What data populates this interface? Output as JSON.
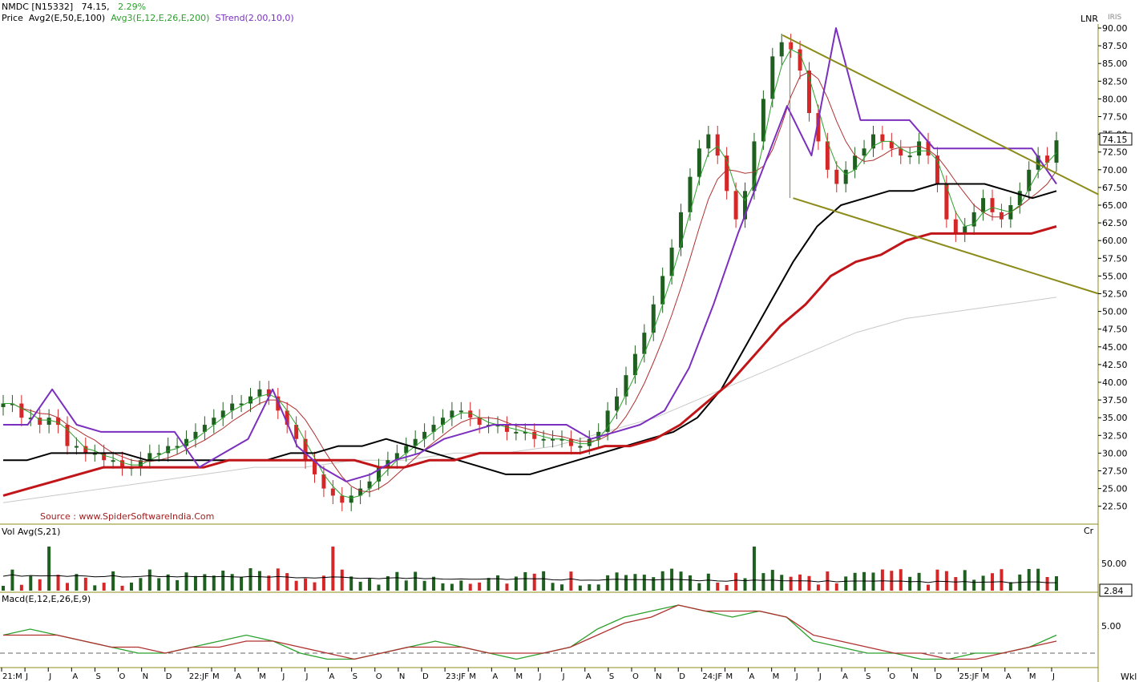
{
  "header": {
    "symbol": "NMDC [N15332]",
    "last": "74.15,",
    "change": "2.29%",
    "price_label": "Price",
    "avg2": "Avg2(E,50,E,100)",
    "avg3": "Avg3(E,12,E,26,E,200)",
    "strend": "STrend(2.00,10,0)",
    "scale_mode": "LNR",
    "scale_tag": "IRIS"
  },
  "source": "Source : www.SpiderSoftwareIndia.Com",
  "volume_panel": {
    "label": "Vol Avg(S,21)",
    "unit": "Cr",
    "tick": "50.00",
    "badge": "2.84"
  },
  "macd_panel": {
    "label": "Macd(E,12,E,26,E,9)",
    "tick": "5.00"
  },
  "price_badge": "74.15",
  "timeframe": "Wkl",
  "colors": {
    "up": "#1f5f1f",
    "down": "#d62728",
    "strend": "#7b2fbf",
    "ema50": "#000000",
    "ema100": "#c0161a",
    "channel": "#8b8b1a",
    "fast": "#2ca02c",
    "slow": "#b03030"
  },
  "chart_data": [
    {
      "type": "candlestick",
      "title": "NMDC [N15332]",
      "ylim": [
        20,
        90
      ],
      "y_ticks": [
        "22.50",
        "25.00",
        "27.50",
        "30.00",
        "32.50",
        "35.00",
        "37.50",
        "40.00",
        "42.50",
        "45.00",
        "47.50",
        "50.00",
        "52.50",
        "55.00",
        "57.50",
        "60.00",
        "62.50",
        "65.00",
        "67.50",
        "70.00",
        "72.50",
        "75.00",
        "77.50",
        "80.00",
        "82.50",
        "85.00",
        "87.50",
        "90.00"
      ],
      "x_ticks": [
        "21:M",
        "J",
        "J",
        "A",
        "S",
        "O",
        "N",
        "D",
        "22:JF",
        "M",
        "A",
        "M",
        "J",
        "J",
        "A",
        "S",
        "O",
        "N",
        "D",
        "23:JF",
        "M",
        "A",
        "M",
        "J",
        "J",
        "A",
        "S",
        "O",
        "N",
        "D",
        "24:JF",
        "M",
        "A",
        "M",
        "J",
        "J",
        "A",
        "S",
        "O",
        "N",
        "D",
        "25:JF",
        "M",
        "A",
        "M",
        "J"
      ],
      "close_series": [
        37,
        37,
        35,
        35,
        34,
        35,
        34,
        31,
        31,
        30,
        30,
        29,
        29,
        28,
        28,
        29,
        30,
        30,
        31,
        31,
        32,
        33,
        34,
        35,
        36,
        37,
        37,
        38,
        39,
        38,
        36,
        34,
        32,
        29,
        27,
        25,
        24,
        23,
        24,
        25,
        26,
        28,
        29,
        30,
        31,
        32,
        33,
        34,
        35,
        36,
        36,
        35,
        34,
        34,
        34,
        33,
        33,
        33,
        32,
        32,
        32,
        32,
        31,
        31,
        32,
        33,
        36,
        38,
        41,
        44,
        47,
        51,
        55,
        59,
        64,
        69,
        73,
        75,
        72,
        67,
        63,
        67,
        74,
        80,
        86,
        88,
        87,
        84,
        78,
        74,
        70,
        68,
        70,
        72,
        73,
        75,
        74,
        73,
        72,
        72,
        74,
        72,
        68,
        63,
        61,
        62,
        64,
        66,
        64,
        63,
        65,
        67,
        70,
        72,
        71,
        74.15
      ],
      "series": [
        {
          "name": "Avg2 E50",
          "values": [
            29,
            29,
            30,
            30,
            30,
            30,
            29,
            29,
            29,
            29,
            29,
            29,
            30,
            30,
            31,
            31,
            32,
            31,
            30,
            29,
            28,
            27,
            27,
            28,
            29,
            30,
            31,
            32,
            33,
            35,
            39,
            45,
            51,
            57,
            62,
            65,
            66,
            67,
            67,
            68,
            68,
            68,
            67,
            66,
            67
          ]
        },
        {
          "name": "Avg2 E100",
          "values": [
            24,
            25,
            26,
            27,
            28,
            28,
            28,
            28,
            28,
            29,
            29,
            29,
            29,
            29,
            29,
            28,
            28,
            29,
            29,
            30,
            30,
            30,
            30,
            30,
            31,
            31,
            32,
            34,
            37,
            40,
            44,
            48,
            51,
            55,
            57,
            58,
            60,
            61,
            61,
            61,
            61,
            61,
            62
          ]
        },
        {
          "name": "STrend",
          "values": [
            34,
            34,
            39,
            34,
            33,
            33,
            33,
            33,
            28,
            30,
            32,
            39,
            31,
            28,
            26,
            27,
            29,
            30,
            32,
            33,
            34,
            34,
            34,
            34,
            32,
            33,
            34,
            36,
            42,
            51,
            61,
            70,
            79,
            72,
            90,
            77,
            77,
            77,
            73,
            73,
            73,
            73,
            73,
            68
          ]
        }
      ]
    },
    {
      "type": "bar",
      "title": "Vol Avg(S,21)",
      "y_ticks": [
        "50.00"
      ],
      "last": 2.84
    },
    {
      "type": "line",
      "title": "Macd(E,12,E,26,E,9)",
      "y_ticks": [
        "5.00"
      ],
      "series": [
        {
          "name": "MACD",
          "values": [
            3,
            4,
            3,
            2,
            1,
            0,
            0,
            1,
            2,
            3,
            2,
            0,
            -1,
            -1,
            0,
            1,
            2,
            1,
            0,
            -1,
            0,
            1,
            4,
            6,
            7,
            8,
            7,
            6,
            7,
            6,
            2,
            1,
            0,
            0,
            -1,
            -1,
            0,
            0,
            1,
            3
          ]
        },
        {
          "name": "Signal",
          "values": [
            3,
            3,
            3,
            2,
            1,
            1,
            0,
            1,
            1,
            2,
            2,
            1,
            0,
            -1,
            0,
            1,
            1,
            1,
            0,
            0,
            0,
            1,
            3,
            5,
            6,
            8,
            7,
            7,
            7,
            6,
            3,
            2,
            1,
            0,
            0,
            -1,
            -1,
            0,
            1,
            2
          ]
        }
      ]
    }
  ]
}
